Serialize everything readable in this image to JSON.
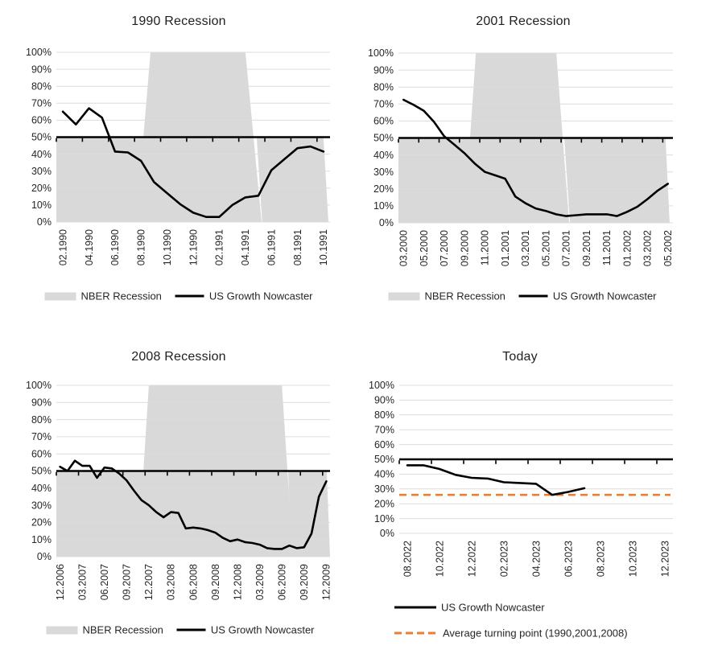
{
  "colors": {
    "series_line": "#000000",
    "recession_fill": "#d9d9d9",
    "gridline": "#dcdcdc",
    "axis_line": "#000000",
    "turning_point_line": "#ed7d31",
    "tick_text": "#262626",
    "title_text": "#1f1f1f"
  },
  "y_ticks": [
    "0%",
    "10%",
    "20%",
    "30%",
    "40%",
    "50%",
    "60%",
    "70%",
    "80%",
    "90%",
    "100%"
  ],
  "legend_labels": {
    "recession": "NBER Recession",
    "nowcaster": "US Growth Nowcaster",
    "turning": "Average turning point (1990,2001,2008)"
  },
  "chart_data": [
    {
      "id": "recession-1990",
      "type": "line",
      "title": "1990 Recession",
      "ylim": [
        0,
        100
      ],
      "n_categories": 21,
      "points_per_tick": 2,
      "x_tick_labels": [
        "02.1990",
        "04.1990",
        "06.1990",
        "08.1990",
        "10.1990",
        "12.1990",
        "02.1991",
        "04.1991",
        "06.1991",
        "08.1991",
        "10.1991"
      ],
      "series": [
        {
          "name": "US Growth Nowcaster",
          "values": [
            65,
            57.5,
            67,
            61.5,
            41.5,
            41,
            36,
            23.5,
            17,
            10.5,
            5.5,
            3,
            3,
            10,
            14.5,
            15.5,
            30.5,
            37,
            43.5,
            44.5,
            41.5
          ]
        }
      ],
      "recession_shading": {
        "name": "NBER Recession",
        "polygons": [
          [
            [
              0,
              0
            ],
            [
              0,
              50
            ],
            [
              0.318,
              50
            ],
            [
              0.344,
              100
            ],
            [
              0.691,
              100
            ],
            [
              0.75,
              0
            ]
          ],
          [
            [
              0.752,
              0
            ],
            [
              0.732,
              50
            ],
            [
              0.976,
              50
            ],
            [
              0.994,
              0
            ]
          ]
        ]
      },
      "reference_line": null,
      "legend": [
        "recession",
        "nowcaster"
      ]
    },
    {
      "id": "recession-2001",
      "type": "line",
      "title": "2001 Recession",
      "ylim": [
        0,
        100
      ],
      "n_categories": 27,
      "points_per_tick": 2,
      "x_tick_labels": [
        "03.2000",
        "05.2000",
        "07.2000",
        "09.2000",
        "11.2000",
        "01.2001",
        "03.2001",
        "05.2001",
        "07.2001",
        "09.2001",
        "11.2001",
        "01.2002",
        "03.2002",
        "05.2002"
      ],
      "series": [
        {
          "name": "US Growth Nowcaster",
          "values": [
            72.5,
            69.5,
            66,
            59.5,
            51,
            46,
            41,
            35,
            30,
            28,
            26,
            15.5,
            11.5,
            8.5,
            7,
            5,
            4,
            4.5,
            5,
            5,
            5,
            4,
            6.5,
            9.5,
            14,
            19,
            23
          ]
        }
      ],
      "recession_shading": {
        "name": "NBER Recession",
        "polygons": [
          [
            [
              0,
              0
            ],
            [
              0,
              50
            ],
            [
              0.261,
              50
            ],
            [
              0.282,
              100
            ],
            [
              0.575,
              100
            ],
            [
              0.622,
              0
            ]
          ],
          [
            [
              0.625,
              0
            ],
            [
              0.604,
              50
            ],
            [
              0.973,
              50
            ],
            [
              0.988,
              0
            ]
          ]
        ]
      },
      "reference_line": null,
      "legend": [
        "recession",
        "nowcaster"
      ]
    },
    {
      "id": "recession-2008",
      "type": "line",
      "title": "2008 Recession",
      "ylim": [
        0,
        100
      ],
      "n_categories": 37,
      "points_per_tick": 3,
      "x_tick_labels": [
        "12.2006",
        "03.2007",
        "06.2007",
        "09.2007",
        "12.2007",
        "03.2008",
        "06.2008",
        "09.2008",
        "12.2008",
        "03.2009",
        "06.2009",
        "09.2009",
        "12.2009"
      ],
      "series": [
        {
          "name": "US Growth Nowcaster",
          "values": [
            52.5,
            50,
            56,
            53,
            53,
            46,
            52,
            51.5,
            48.5,
            44.5,
            38.5,
            33,
            30,
            26,
            23,
            26,
            25.5,
            16.5,
            17,
            16.5,
            15.5,
            14,
            11,
            9,
            10,
            8.5,
            8,
            7,
            5,
            4.5,
            4.5,
            6.5,
            5,
            5.5,
            13.5,
            35,
            44
          ]
        }
      ],
      "recession_shading": {
        "name": "NBER Recession",
        "polygons": [
          [
            [
              0,
              0
            ],
            [
              0,
              50
            ],
            [
              0.318,
              50
            ],
            [
              0.338,
              100
            ],
            [
              0.824,
              100
            ],
            [
              0.865,
              0
            ]
          ],
          [
            [
              0.859,
              0
            ],
            [
              0.847,
              50
            ],
            [
              0.988,
              50
            ],
            [
              1,
              0
            ]
          ]
        ]
      },
      "reference_line": null,
      "legend": [
        "recession",
        "nowcaster"
      ]
    },
    {
      "id": "today",
      "type": "line",
      "title": "Today",
      "ylim": [
        0,
        100
      ],
      "n_categories": 17,
      "points_per_tick": 2,
      "x_tick_labels": [
        "08.2022",
        "10.2022",
        "12.2022",
        "02.2023",
        "04.2023",
        "06.2023",
        "08.2023",
        "10.2023",
        "12.2023"
      ],
      "series": [
        {
          "name": "US Growth Nowcaster",
          "values": [
            46,
            46,
            43.5,
            39.5,
            37.5,
            37,
            34.5,
            34,
            33.5,
            26,
            28,
            30.5
          ]
        }
      ],
      "recession_shading": null,
      "reference_line": {
        "name": "Average turning point (1990,2001,2008)",
        "value": 26,
        "style": "dashed"
      },
      "legend": [
        "nowcaster",
        "turning"
      ]
    }
  ]
}
